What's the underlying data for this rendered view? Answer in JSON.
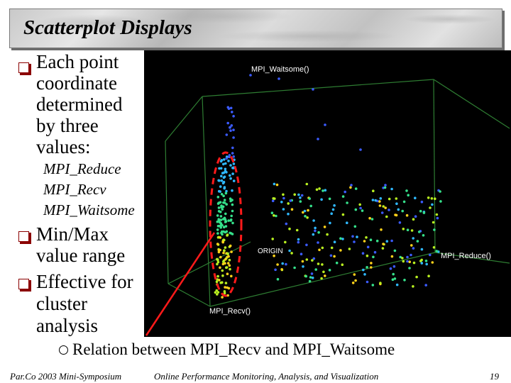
{
  "slide": {
    "title": "Scatterplot Displays",
    "bullets": [
      {
        "text": [
          "Each point",
          "coordinate",
          "determined",
          "by three",
          "values:"
        ]
      },
      {
        "text": [
          "Min/Max",
          "value range"
        ]
      },
      {
        "text": [
          "Effective for",
          "cluster",
          "analysis"
        ]
      }
    ],
    "sub_values": [
      "MPI_Reduce",
      "MPI_Recv",
      "MPI_Waitsome"
    ],
    "caption": "Relation between MPI_Recv and MPI_Waitsome",
    "footer": {
      "left": "Par.Co 2003 Mini-Symposium",
      "center": "Online Performance Monitoring, Analysis, and Visualization",
      "page": "19"
    }
  },
  "plot": {
    "axis_labels": {
      "z": "MPI_Waitsome()",
      "x": "MPI_Reduce()",
      "y": "MPI_Recv()",
      "origin": "ORIGIN"
    },
    "colors": {
      "background": "#000000",
      "box": "#2e7d32",
      "highlight": "#ff1a1a",
      "points": [
        "#3b5bff",
        "#2fb8ff",
        "#35e08a",
        "#b8f020",
        "#ffd21a"
      ]
    }
  }
}
